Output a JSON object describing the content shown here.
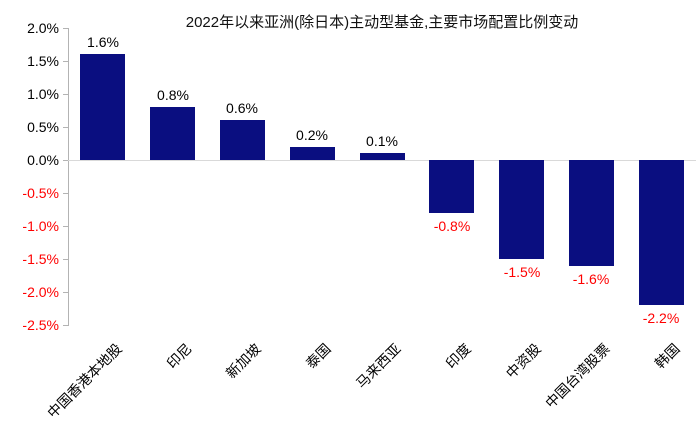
{
  "chart_data": {
    "type": "bar",
    "title": "2022年以来亚洲(除日本)主动型基金,主要市场配置比例变动",
    "categories": [
      "中国香港本地股",
      "印尼",
      "新加坡",
      "泰国",
      "马来西亚",
      "印度",
      "中资股",
      "中国台湾股票",
      "韩国"
    ],
    "values": [
      1.6,
      0.8,
      0.6,
      0.2,
      0.1,
      -0.8,
      -1.5,
      -1.6,
      -2.2
    ],
    "value_labels": [
      "1.6%",
      "0.8%",
      "0.6%",
      "0.2%",
      "0.1%",
      "-0.8%",
      "-1.5%",
      "-1.6%",
      "-2.2%"
    ],
    "y_ticks": [
      "2.0%",
      "1.5%",
      "1.0%",
      "0.5%",
      "0.0%",
      "-0.5%",
      "-1.0%",
      "-1.5%",
      "-2.0%",
      "-2.5%"
    ],
    "ylim": [
      -2.5,
      2.0
    ],
    "xlabel": "",
    "ylabel": "",
    "grid": "zero-line-only",
    "legend": "none",
    "colors": {
      "bar": "#0a0e80",
      "positive_label": "#000000",
      "negative_label": "#ff0000",
      "axis": "#b3b3b3",
      "zero_line": "#d9d9d9",
      "title": "#111111"
    }
  }
}
